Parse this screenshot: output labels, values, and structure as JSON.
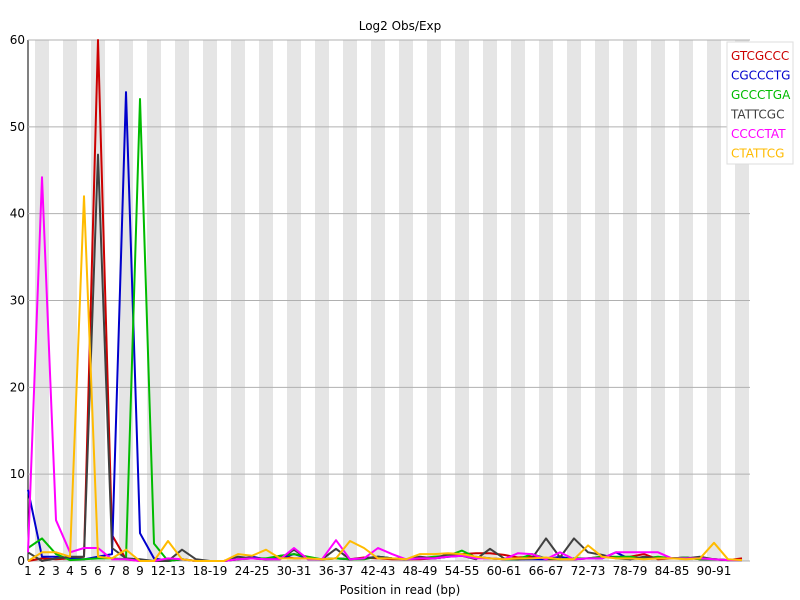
{
  "chart_data": {
    "type": "line",
    "title": "Log2 Obs/Exp",
    "xlabel": "Position in read (bp)",
    "ylabel": "",
    "ylim": [
      0,
      60
    ],
    "yticks": [
      0,
      10,
      20,
      30,
      40,
      50,
      60
    ],
    "grid": false,
    "legend_position": "top-right",
    "categories": [
      "1",
      "2",
      "3",
      "4",
      "5",
      "6",
      "7",
      "8",
      "9",
      "10-11",
      "12-13",
      "14-15",
      "16-17",
      "18-19",
      "20-21",
      "22-23",
      "24-25",
      "26-27",
      "28-29",
      "30-31",
      "32-33",
      "34-35",
      "36-37",
      "38-39",
      "40-41",
      "42-43",
      "44-45",
      "46-47",
      "48-49",
      "50-51",
      "52-53",
      "54-55",
      "56-57",
      "58-59",
      "60-61",
      "62-63",
      "64-65",
      "66-67",
      "68-69",
      "70-71",
      "72-73",
      "74-75",
      "76-77",
      "78-79",
      "80-81",
      "82-83",
      "84-85",
      "86-87",
      "88-89",
      "90-91",
      "92-93",
      "94-95"
    ],
    "tick_labels": [
      "1",
      "2",
      "3",
      "4",
      "5",
      "6",
      "7",
      "8",
      "9",
      "",
      "12-13",
      "",
      "",
      "18-19",
      "",
      "",
      "24-25",
      "",
      "",
      "30-31",
      "",
      "",
      "36-37",
      "",
      "",
      "42-43",
      "",
      "",
      "48-49",
      "",
      "",
      "54-55",
      "",
      "",
      "60-61",
      "",
      "",
      "66-67",
      "",
      "",
      "72-73",
      "",
      "",
      "78-79",
      "",
      "",
      "84-85",
      "",
      "",
      "90-91",
      "",
      ""
    ],
    "series": [
      {
        "name": "GTCGCCC",
        "color": "#cc0000",
        "values": [
          0,
          0.3,
          0.2,
          0.3,
          0.5,
          60,
          3,
          0.2,
          0,
          0,
          0,
          0.2,
          0,
          0,
          0,
          0.2,
          0.3,
          0.2,
          0.6,
          0.3,
          0.3,
          0.2,
          0.3,
          0.2,
          0.4,
          0.3,
          0.2,
          0.2,
          0.2,
          0.3,
          0.5,
          0.8,
          0.9,
          0.9,
          0.7,
          0.4,
          0.5,
          0.2,
          0.2,
          0.2,
          0.3,
          0.5,
          0.4,
          0.5,
          0.8,
          0.2,
          0.3,
          0.4,
          0.2,
          0.2,
          0.1,
          0.3
        ]
      },
      {
        "name": "CGCCCTG",
        "color": "#0000cc",
        "values": [
          8.2,
          0.5,
          0.5,
          0.3,
          0.2,
          0.5,
          0.8,
          54,
          3.2,
          0.3,
          0,
          0.2,
          0,
          0,
          0,
          0.2,
          0.5,
          0.2,
          0.3,
          0.8,
          0.3,
          0.2,
          0.3,
          0.2,
          0.3,
          0.5,
          0.3,
          0.2,
          0.3,
          0.3,
          0.5,
          0.6,
          0.5,
          0.3,
          0.2,
          0.2,
          0.2,
          0.2,
          0.5,
          0.2,
          0.3,
          0.3,
          1,
          0.2,
          0.4,
          0.3,
          0.3,
          0.4,
          0.2,
          0.2,
          0.1,
          0.1
        ]
      },
      {
        "name": "GCCCTGA",
        "color": "#00bb00",
        "values": [
          1.5,
          2.6,
          0.8,
          0.1,
          0.2,
          0.3,
          0.3,
          0.2,
          53.2,
          2,
          0,
          0.2,
          0,
          0,
          0,
          0.2,
          0.3,
          0.3,
          0.6,
          0.8,
          0.5,
          0.2,
          0.3,
          0.2,
          0.2,
          0.5,
          0.3,
          0.2,
          0.3,
          0.5,
          0.6,
          1.2,
          0.4,
          0.3,
          0.2,
          0.2,
          0.8,
          0.3,
          0.2,
          0.3,
          0.3,
          0.5,
          0.5,
          0.5,
          0.3,
          0.5,
          0.3,
          0.4,
          0.2,
          0.2,
          0.1,
          0.1
        ]
      },
      {
        "name": "TATTCGC",
        "color": "#404040",
        "values": [
          1,
          0,
          0.3,
          0.5,
          0.5,
          46.8,
          1.5,
          0.3,
          0.2,
          0,
          0,
          1.3,
          0.2,
          0,
          0,
          0.5,
          0.3,
          0.2,
          0.2,
          1.3,
          0.2,
          0.2,
          1.4,
          0.2,
          0.3,
          0.5,
          0.3,
          0.2,
          0.5,
          0.3,
          0.8,
          0.6,
          0.2,
          1.4,
          0.3,
          0.2,
          0.3,
          2.6,
          0.4,
          2.6,
          1,
          0.7,
          0.3,
          0.2,
          0.5,
          0.3,
          0.3,
          0.3,
          0.5,
          0.2,
          0.1,
          0.1
        ]
      },
      {
        "name": "CCCCTAT",
        "color": "#ff00ff",
        "values": [
          1,
          44.2,
          4.7,
          1,
          1.5,
          1.5,
          0.2,
          0.2,
          0,
          0,
          0.3,
          0.2,
          0,
          0,
          0,
          0.2,
          0.3,
          0.2,
          0.2,
          1.5,
          0.2,
          0.2,
          2.4,
          0.2,
          0.3,
          1.5,
          0.8,
          0.2,
          0.3,
          0.3,
          0.5,
          0.6,
          0.3,
          0.3,
          0.2,
          0.9,
          0.8,
          0.2,
          1,
          0.2,
          0.3,
          0.3,
          1,
          1,
          1,
          1,
          0.3,
          0.3,
          0.3,
          0.2,
          0.1,
          0.1
        ]
      },
      {
        "name": "CTATTCG",
        "color": "#ffbb00",
        "values": [
          0,
          1,
          1,
          0.5,
          42,
          0.5,
          0.3,
          1.3,
          0,
          0,
          2.3,
          0.2,
          0,
          0,
          0,
          0.8,
          0.6,
          1.3,
          0.3,
          0.3,
          0.3,
          0.2,
          0.3,
          2.3,
          1.5,
          0.3,
          0.3,
          0.2,
          0.8,
          0.8,
          0.9,
          0.8,
          0.5,
          0.3,
          0.2,
          0.3,
          0.3,
          0.4,
          0.2,
          0.2,
          1.8,
          0.5,
          0.3,
          0.3,
          0.2,
          0.3,
          0.3,
          0.2,
          0.3,
          2.1,
          0.2,
          0.1
        ]
      }
    ]
  }
}
